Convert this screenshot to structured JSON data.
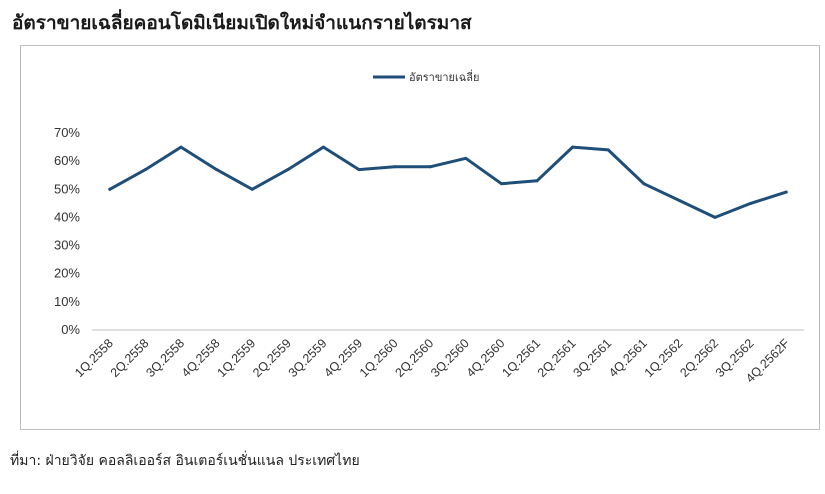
{
  "page": {
    "title": "อัตราขายเฉลี่ยคอนโดมิเนียมเปิดใหม่จำแนกรายไตรมาส",
    "source": "ที่มา: ฝ่ายวิจัย คอลลิเออร์ส อินเตอร์เนชั่นแนล ประเทศไทย"
  },
  "chart_data": {
    "type": "line",
    "title": "อัตราขายเฉลี่ยคอนโดมิเนียมเปิดใหม่จำแนกรายไตรมาส",
    "xlabel": "",
    "ylabel": "",
    "categories": [
      "1Q.2558",
      "2Q.2558",
      "3Q.2558",
      "4Q.2558",
      "1Q.2559",
      "2Q.2559",
      "3Q.2559",
      "4Q.2559",
      "1Q.2560",
      "2Q.2560",
      "3Q.2560",
      "4Q.2560",
      "1Q.2561",
      "2Q.2561",
      "3Q.2561",
      "4Q.2561",
      "1Q.2562",
      "2Q.2562",
      "3Q.2562",
      "4Q.2562F"
    ],
    "series": [
      {
        "name": "อัตราขายเฉลี่ย",
        "color": "#1f4e79",
        "values": [
          50,
          57,
          65,
          57,
          50,
          57,
          65,
          57,
          58,
          58,
          61,
          52,
          53,
          65,
          64,
          52,
          46,
          40,
          45,
          49
        ]
      }
    ],
    "yticks": [
      "0%",
      "10%",
      "20%",
      "30%",
      "40%",
      "50%",
      "60%",
      "70%"
    ],
    "ylim": [
      0,
      70
    ],
    "y_unit": "%",
    "grid": false,
    "legend": "top-center"
  }
}
